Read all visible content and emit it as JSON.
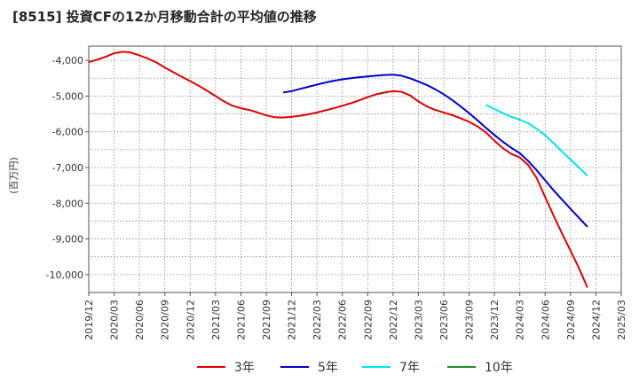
{
  "title": "[8515]  投資CFの12か月移動合計の平均値の推移",
  "ylabel": "(百万円)",
  "chart_data": {
    "type": "line",
    "ylim": [
      -10500,
      -3600
    ],
    "yticks": [
      -4000,
      -5000,
      -6000,
      -7000,
      -8000,
      -9000,
      -10000
    ],
    "ytick_labels": [
      "-4,000",
      "-5,000",
      "-6,000",
      "-7,000",
      "-8,000",
      "-9,000",
      "-10,000"
    ],
    "xticks": [
      "2019/12",
      "2020/03",
      "2020/06",
      "2020/09",
      "2020/12",
      "2021/03",
      "2021/06",
      "2021/09",
      "2021/12",
      "2022/03",
      "2022/06",
      "2022/09",
      "2022/12",
      "2023/03",
      "2023/06",
      "2023/09",
      "2023/12",
      "2024/03",
      "2024/06",
      "2024/09",
      "2024/12",
      "2025/03"
    ],
    "grid": true,
    "legend_position": "bottom",
    "series": [
      {
        "name": "3年",
        "color": "#e00000",
        "points": [
          [
            "2019/12",
            -4050
          ],
          [
            "2020/01",
            -3980
          ],
          [
            "2020/02",
            -3900
          ],
          [
            "2020/03",
            -3800
          ],
          [
            "2020/04",
            -3760
          ],
          [
            "2020/05",
            -3780
          ],
          [
            "2020/06",
            -3860
          ],
          [
            "2020/07",
            -3950
          ],
          [
            "2020/08",
            -4060
          ],
          [
            "2020/09",
            -4200
          ],
          [
            "2020/10",
            -4330
          ],
          [
            "2020/11",
            -4460
          ],
          [
            "2020/12",
            -4580
          ],
          [
            "2021/01",
            -4710
          ],
          [
            "2021/02",
            -4850
          ],
          [
            "2021/03",
            -5000
          ],
          [
            "2021/04",
            -5150
          ],
          [
            "2021/05",
            -5270
          ],
          [
            "2021/06",
            -5340
          ],
          [
            "2021/07",
            -5390
          ],
          [
            "2021/08",
            -5460
          ],
          [
            "2021/09",
            -5540
          ],
          [
            "2021/10",
            -5590
          ],
          [
            "2021/11",
            -5600
          ],
          [
            "2021/12",
            -5580
          ],
          [
            "2022/01",
            -5550
          ],
          [
            "2022/02",
            -5510
          ],
          [
            "2022/03",
            -5460
          ],
          [
            "2022/04",
            -5400
          ],
          [
            "2022/05",
            -5340
          ],
          [
            "2022/06",
            -5270
          ],
          [
            "2022/07",
            -5200
          ],
          [
            "2022/08",
            -5120
          ],
          [
            "2022/09",
            -5030
          ],
          [
            "2022/10",
            -4950
          ],
          [
            "2022/11",
            -4900
          ],
          [
            "2022/12",
            -4860
          ],
          [
            "2023/01",
            -4880
          ],
          [
            "2023/02",
            -4980
          ],
          [
            "2023/03",
            -5150
          ],
          [
            "2023/04",
            -5290
          ],
          [
            "2023/05",
            -5390
          ],
          [
            "2023/06",
            -5460
          ],
          [
            "2023/07",
            -5530
          ],
          [
            "2023/08",
            -5620
          ],
          [
            "2023/09",
            -5720
          ],
          [
            "2023/10",
            -5850
          ],
          [
            "2023/11",
            -6020
          ],
          [
            "2023/12",
            -6250
          ],
          [
            "2024/01",
            -6460
          ],
          [
            "2024/02",
            -6620
          ],
          [
            "2024/03",
            -6720
          ],
          [
            "2024/04",
            -6930
          ],
          [
            "2024/05",
            -7300
          ],
          [
            "2024/06",
            -7830
          ],
          [
            "2024/07",
            -8350
          ],
          [
            "2024/08",
            -8850
          ],
          [
            "2024/09",
            -9330
          ],
          [
            "2024/10",
            -9820
          ],
          [
            "2024/11",
            -10360
          ]
        ]
      },
      {
        "name": "5年",
        "color": "#0000cc",
        "points": [
          [
            "2021/11",
            -4900
          ],
          [
            "2021/12",
            -4860
          ],
          [
            "2022/01",
            -4800
          ],
          [
            "2022/02",
            -4740
          ],
          [
            "2022/03",
            -4680
          ],
          [
            "2022/04",
            -4620
          ],
          [
            "2022/05",
            -4570
          ],
          [
            "2022/06",
            -4530
          ],
          [
            "2022/07",
            -4500
          ],
          [
            "2022/08",
            -4470
          ],
          [
            "2022/09",
            -4450
          ],
          [
            "2022/10",
            -4430
          ],
          [
            "2022/11",
            -4410
          ],
          [
            "2022/12",
            -4400
          ],
          [
            "2023/01",
            -4430
          ],
          [
            "2023/02",
            -4500
          ],
          [
            "2023/03",
            -4590
          ],
          [
            "2023/04",
            -4690
          ],
          [
            "2023/05",
            -4810
          ],
          [
            "2023/06",
            -4950
          ],
          [
            "2023/07",
            -5110
          ],
          [
            "2023/08",
            -5290
          ],
          [
            "2023/09",
            -5480
          ],
          [
            "2023/10",
            -5680
          ],
          [
            "2023/11",
            -5890
          ],
          [
            "2023/12",
            -6090
          ],
          [
            "2024/01",
            -6280
          ],
          [
            "2024/02",
            -6450
          ],
          [
            "2024/03",
            -6600
          ],
          [
            "2024/04",
            -6820
          ],
          [
            "2024/05",
            -7080
          ],
          [
            "2024/06",
            -7360
          ],
          [
            "2024/07",
            -7640
          ],
          [
            "2024/08",
            -7900
          ],
          [
            "2024/09",
            -8160
          ],
          [
            "2024/10",
            -8410
          ],
          [
            "2024/11",
            -8660
          ]
        ]
      },
      {
        "name": "7年",
        "color": "#00e5ee",
        "points": [
          [
            "2023/11",
            -5250
          ],
          [
            "2023/12",
            -5360
          ],
          [
            "2024/01",
            -5480
          ],
          [
            "2024/02",
            -5580
          ],
          [
            "2024/03",
            -5660
          ],
          [
            "2024/04",
            -5760
          ],
          [
            "2024/05",
            -5920
          ],
          [
            "2024/06",
            -6100
          ],
          [
            "2024/07",
            -6320
          ],
          [
            "2024/08",
            -6550
          ],
          [
            "2024/09",
            -6780
          ],
          [
            "2024/10",
            -7000
          ],
          [
            "2024/11",
            -7230
          ]
        ]
      },
      {
        "name": "10年",
        "color": "#228b22",
        "points": []
      }
    ]
  }
}
